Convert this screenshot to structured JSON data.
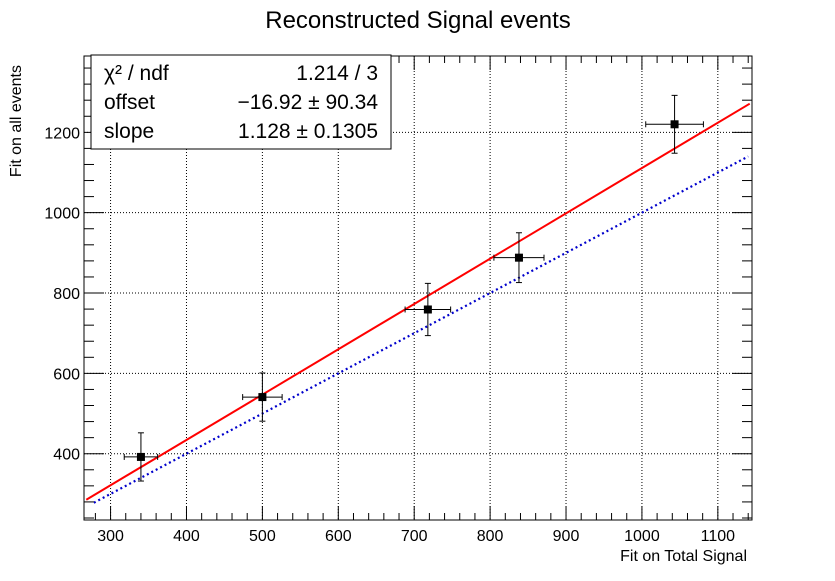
{
  "chart_data": {
    "type": "scatter",
    "title": "Reconstructed Signal events",
    "xlabel": "Fit on Total Signal",
    "ylabel": "Fit on all events",
    "xlim": [
      265,
      1145
    ],
    "ylim": [
      235,
      1390
    ],
    "xticks": [
      300,
      400,
      500,
      600,
      700,
      800,
      900,
      1000,
      1100
    ],
    "yticks": [
      400,
      600,
      800,
      1000,
      1200
    ],
    "grid": true,
    "points": [
      {
        "x": 340,
        "y": 392,
        "xerr": 22,
        "yerr": 60
      },
      {
        "x": 500,
        "y": 541,
        "xerr": 26,
        "yerr": 60
      },
      {
        "x": 718,
        "y": 759,
        "xerr": 30,
        "yerr": 65
      },
      {
        "x": 838,
        "y": 888,
        "xerr": 33,
        "yerr": 62
      },
      {
        "x": 1043,
        "y": 1220,
        "xerr": 38,
        "yerr": 72
      }
    ],
    "fit_line": {
      "color": "#ff0000",
      "x": [
        268,
        1142
      ],
      "y": [
        285.4,
        1271.3
      ]
    },
    "reference_line": {
      "color": "#0000cc",
      "style": "dotted",
      "x": [
        278,
        1140
      ],
      "y": [
        278,
        1140
      ]
    },
    "stats": {
      "rows": [
        {
          "label": "χ² / ndf",
          "value": "1.214 / 3"
        },
        {
          "label": "offset",
          "value": "−16.92 ± 90.34"
        },
        {
          "label": "slope",
          "value": "1.128 ± 0.1305"
        }
      ]
    }
  }
}
